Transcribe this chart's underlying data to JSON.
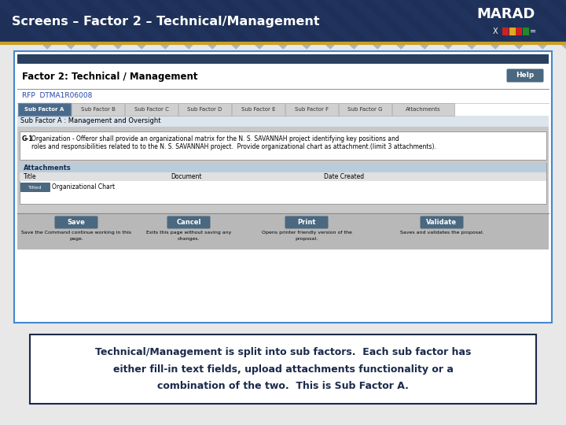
{
  "title": "Screens – Factor 2 – Technical/Management",
  "title_color": "#ffffff",
  "header_bg": "#1e3057",
  "header_bg2": "#243a60",
  "header_gold_line": "#c8a028",
  "marad_text": "MARAD",
  "screen_title": "Factor 2: Technical / Management",
  "rfp_label": "RFP  DTMA1R06008",
  "help_btn": "Help",
  "tabs": [
    "Sub Factor A",
    "Sub Factor B",
    "Sub Factor C",
    "Sub Factor D",
    "Sub Factor E",
    "Sub Factor F",
    "Sub Factor G",
    "Attachments"
  ],
  "active_tab": 0,
  "subfactor_label": "Sub Factor A : Management and Oversight",
  "q_label": "G-1",
  "q_text1": "Organization - Offeror shall provide an organizational matrix for the N. S. SAVANNAH project identifying key positions and",
  "q_text2": "roles and responsibilities related to to the N. S. SAVANNAH project.  Provide organizational chart as attachment.(limit 3 attachments).",
  "attachments_title": "Attachments",
  "col_title": "Title",
  "col_document": "Document",
  "col_date": "Date Created",
  "attachment_btn": "Titled",
  "attachment_value": "Organizational Chart",
  "buttons": [
    "Save",
    "Cancel",
    "Print",
    "Validate"
  ],
  "btn_descs": [
    "Save the Command continue working in this\npage.",
    "Exits this page without saving any\nchanges.",
    "Opens printer friendly version of the\nproposal.",
    "Saves and validates the proposal."
  ],
  "caption_line1": "Technical/Management is split into sub factors.  Each sub factor has",
  "caption_line2": "either fill-in text fields, upload attachments functionality or a",
  "caption_line3": "combination of the two.  This is Sub Factor A.",
  "caption_color": "#1a2a4a",
  "caption_box_color": "#1a2a4a",
  "bg_color": "#e8e8e8",
  "white": "#ffffff",
  "tab_active_color": "#4a6a8a",
  "tab_inactive_color": "#d0d0d0",
  "form_border": "#4488cc",
  "btn_color": "#4a6880"
}
